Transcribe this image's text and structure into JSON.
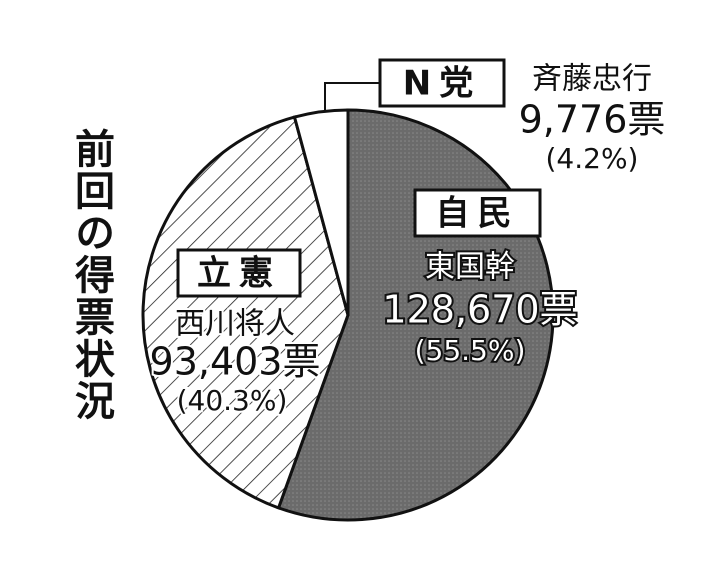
{
  "chart_data": {
    "type": "pie",
    "title": "前回の得票状況",
    "categories": [
      "自民",
      "立憲",
      "N党"
    ],
    "candidates": [
      "東国幹",
      "西川将人",
      "斉藤忠行"
    ],
    "votes": [
      128670,
      93403,
      9776
    ],
    "vote_labels": [
      "128,670票",
      "93,403票",
      "9,776票"
    ],
    "values": [
      55.5,
      40.3,
      4.2
    ],
    "value_labels": [
      "(55.5%)",
      "(40.3%)",
      "(4.2%)"
    ],
    "colors": [
      "#6b6b6b",
      "#ffffff",
      "#ffffff"
    ],
    "patterns": [
      "dots",
      "hatch",
      "none"
    ]
  }
}
